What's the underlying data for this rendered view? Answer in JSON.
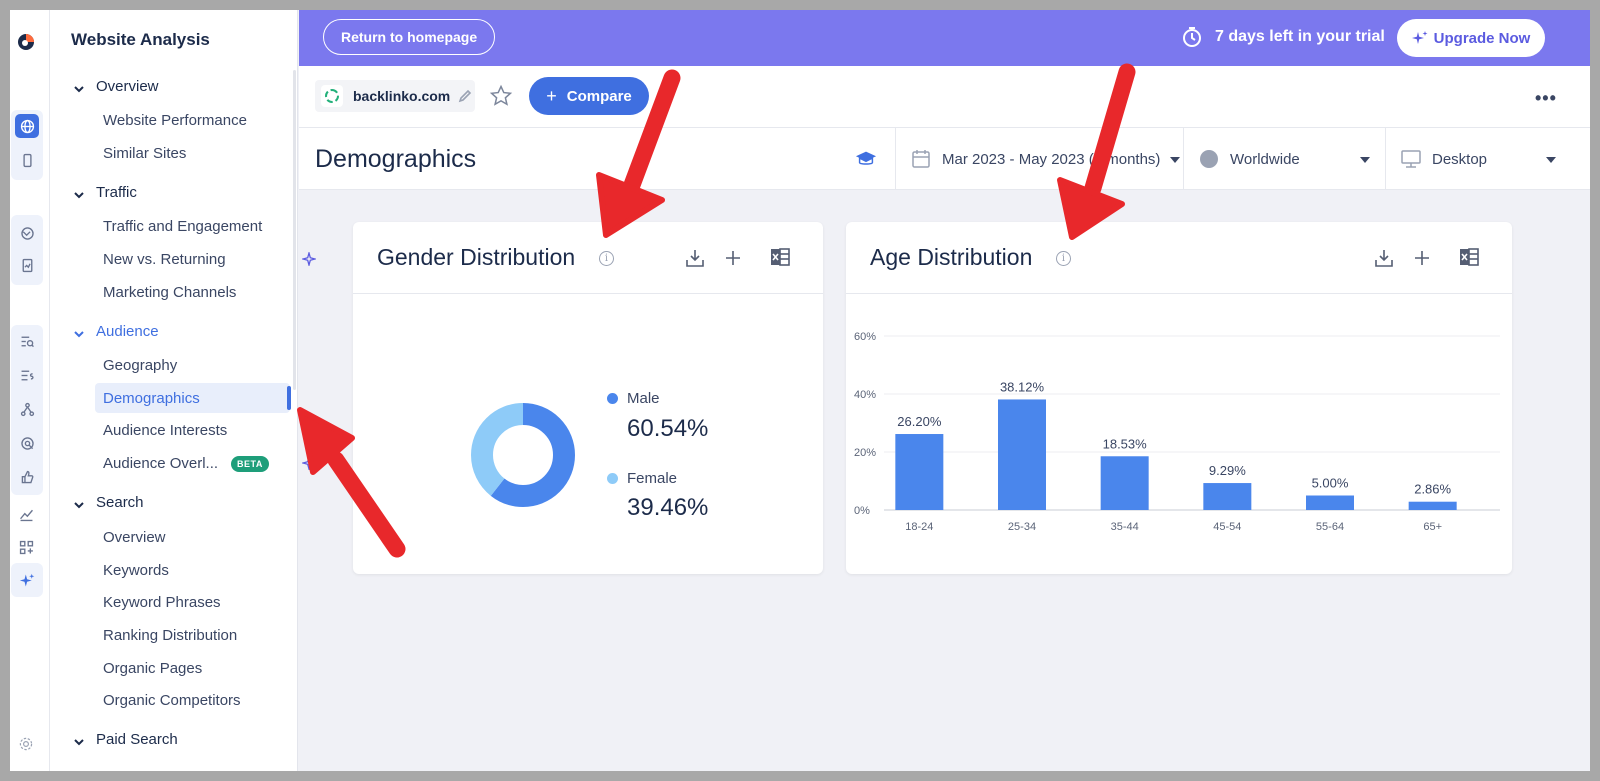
{
  "sidebar": {
    "title": "Website Analysis",
    "sections": [
      {
        "label": "Overview",
        "items": [
          "Website Performance",
          "Similar Sites"
        ]
      },
      {
        "label": "Traffic",
        "items": [
          "Traffic and Engagement",
          "New vs. Returning",
          "Marketing Channels"
        ]
      },
      {
        "label": "Audience",
        "items": [
          "Geography",
          "Demographics",
          "Audience Interests",
          "Audience Overl..."
        ]
      },
      {
        "label": "Search",
        "items": [
          "Overview",
          "Keywords",
          "Keyword Phrases",
          "Ranking Distribution",
          "Organic Pages",
          "Organic Competitors"
        ]
      },
      {
        "label": "Paid Search",
        "items": []
      }
    ],
    "selected_item": "Demographics",
    "beta_badge": "BETA"
  },
  "banner": {
    "return_button": "Return to homepage",
    "trial_text": "7 days left in your trial",
    "upgrade_button": "Upgrade Now",
    "color": "#7b78ee"
  },
  "toolbar": {
    "site": "backlinko.com",
    "compare_button": "Compare"
  },
  "page": {
    "title": "Demographics",
    "date_filter": "Mar 2023 - May 2023 (3 months)",
    "region_filter": "Worldwide",
    "device_filter": "Desktop"
  },
  "gender_card": {
    "title": "Gender Distribution",
    "male_label": "Male",
    "male_value": "60.54%",
    "female_label": "Female",
    "female_value": "39.46%"
  },
  "age_card": {
    "title": "Age Distribution"
  },
  "chart_data": [
    {
      "type": "pie",
      "title": "Gender Distribution",
      "categories": [
        "Male",
        "Female"
      ],
      "values": [
        60.54,
        39.46
      ],
      "colors": [
        "#4a86ec",
        "#8ecbf8"
      ],
      "donut": true,
      "legend": "right"
    },
    {
      "type": "bar",
      "title": "Age Distribution",
      "categories": [
        "18-24",
        "25-34",
        "35-44",
        "45-54",
        "55-64",
        "65+"
      ],
      "values": [
        26.2,
        38.12,
        18.53,
        9.29,
        5.0,
        2.86
      ],
      "value_labels": [
        "26.20%",
        "38.12%",
        "18.53%",
        "9.29%",
        "5.00%",
        "2.86%"
      ],
      "yticks": [
        "0%",
        "20%",
        "40%",
        "60%"
      ],
      "ylim": [
        0,
        60
      ],
      "color": "#4a86ec",
      "grid": true
    }
  ],
  "colors": {
    "accent": "#3f6fe0",
    "annotation_arrow": "#e8282b"
  }
}
